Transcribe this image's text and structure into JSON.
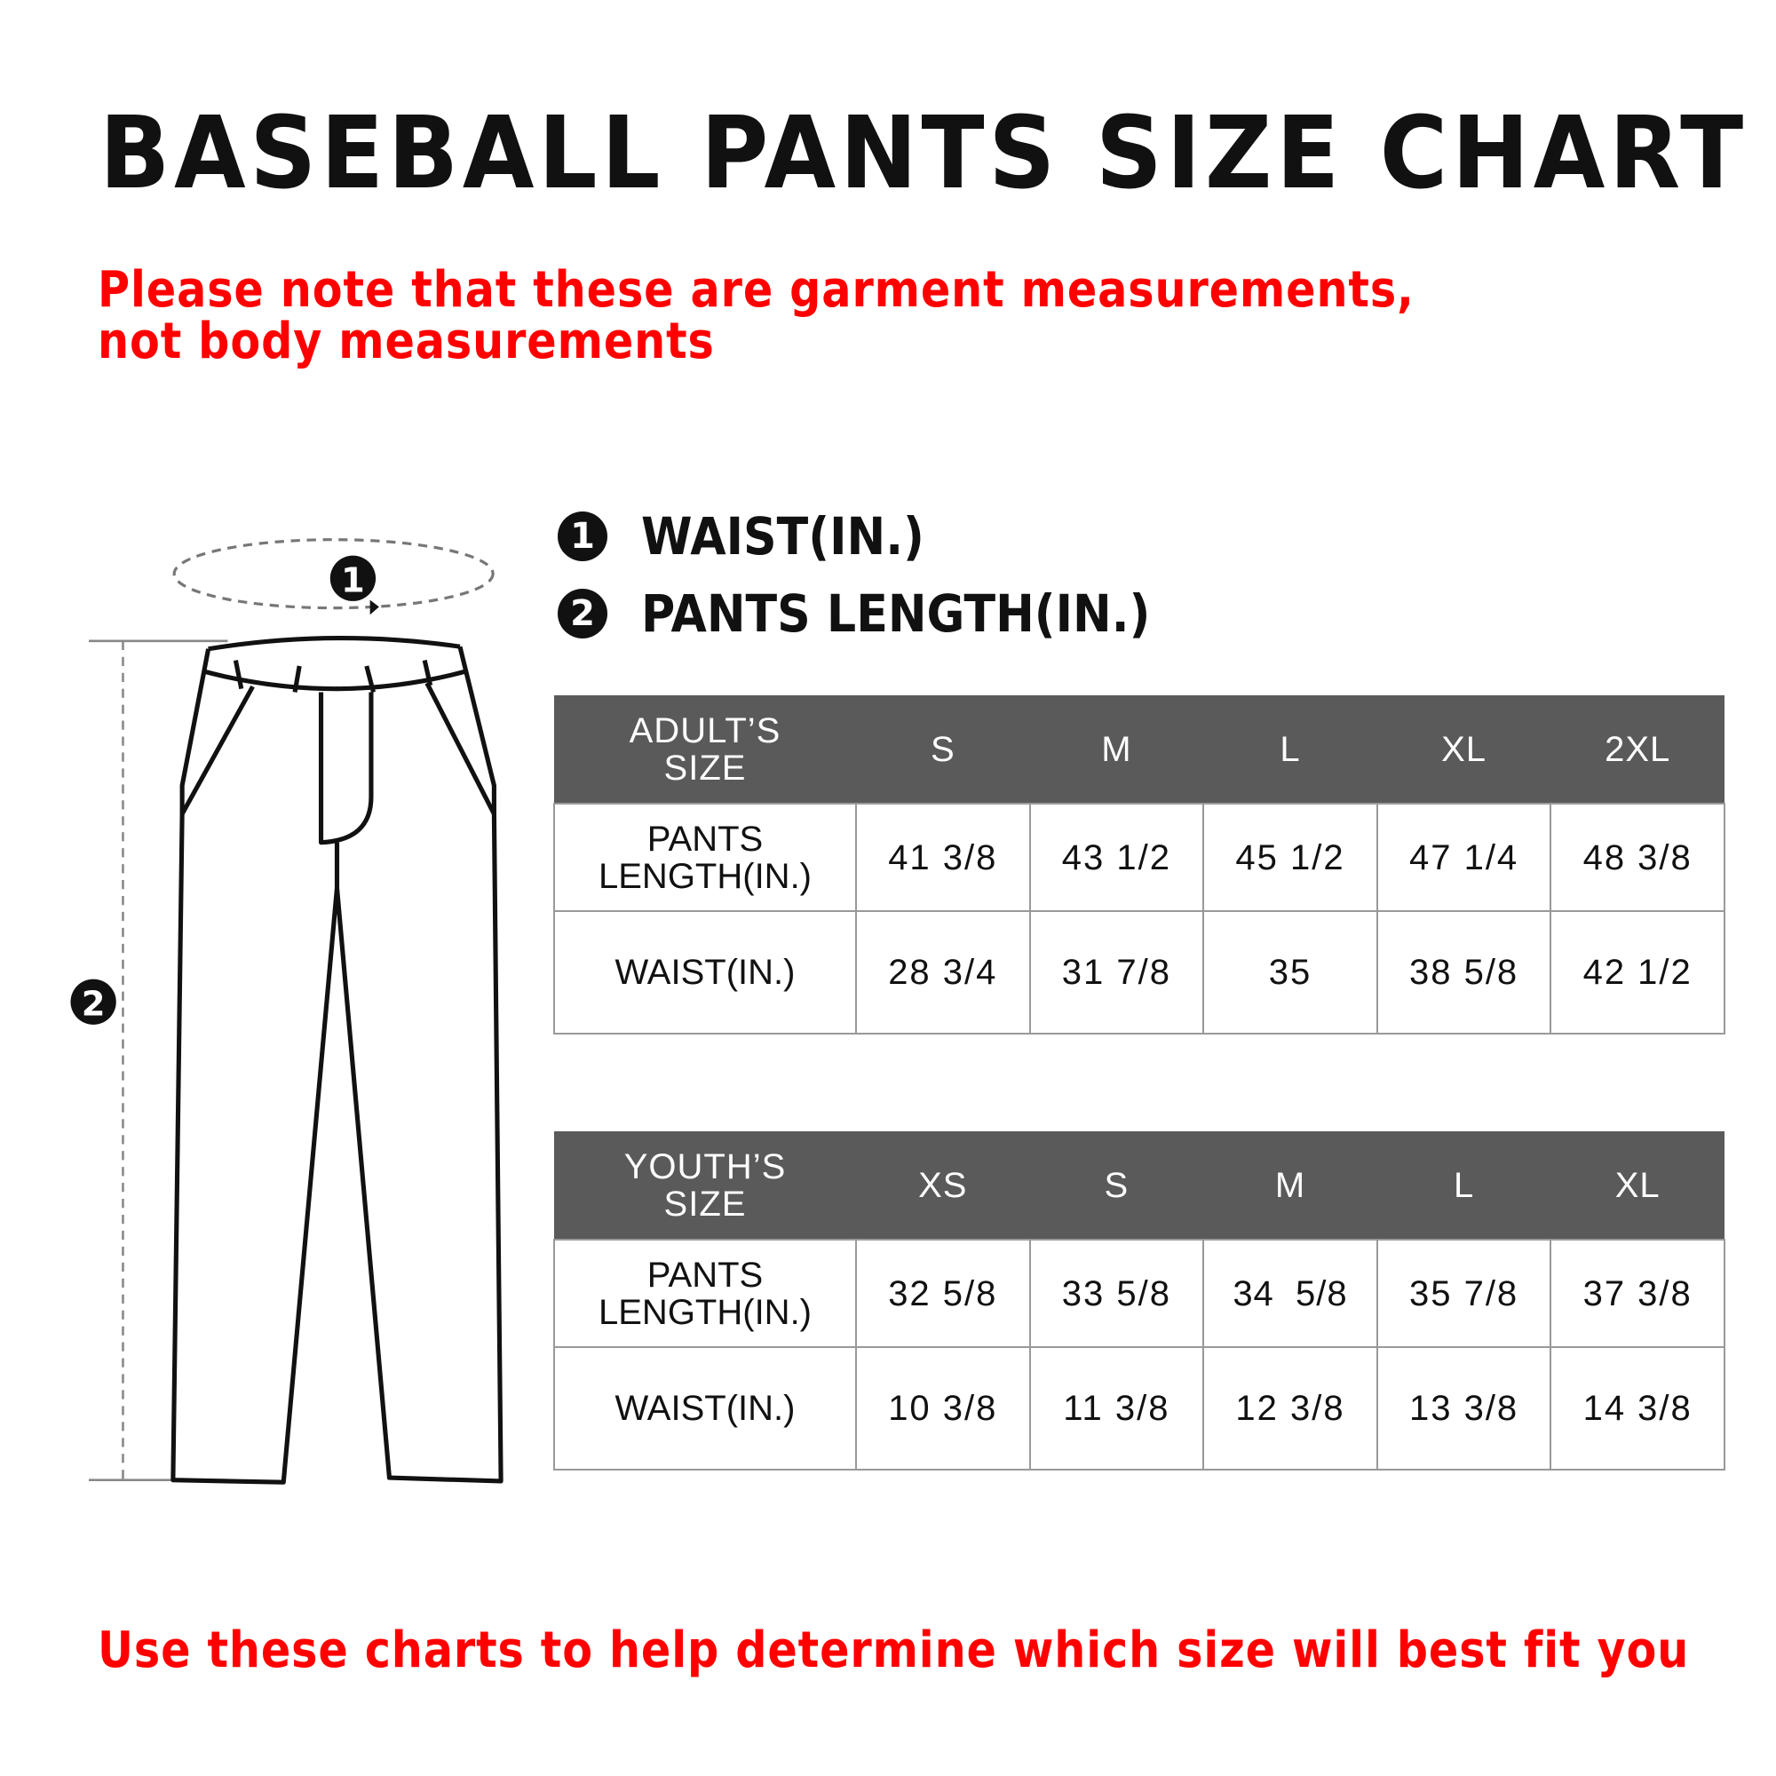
{
  "title": "BASEBALL PANTS SIZE CHART",
  "note": "Please note that these are garment measurements, not body measurements",
  "legend": [
    {
      "num": "1",
      "label": "WAIST(IN.)"
    },
    {
      "num": "2",
      "label": "PANTS LENGTH(IN.)"
    }
  ],
  "diagram": {
    "marker1": "1",
    "marker2": "2"
  },
  "adult": {
    "header": [
      "ADULT’S SIZE",
      "S",
      "M",
      "L",
      "XL",
      "2XL"
    ],
    "rows": [
      {
        "label": "PANTS LENGTH(IN.)",
        "values": [
          "41 3/8",
          "43 1/2",
          "45 1/2",
          "47 1/4",
          "48 3/8"
        ]
      },
      {
        "label": "WAIST(IN.)",
        "values": [
          "28 3/4",
          "31 7/8",
          "35",
          "38 5/8",
          "42 1/2"
        ]
      }
    ]
  },
  "youth": {
    "header": [
      "YOUTH’S SIZE",
      "XS",
      "S",
      "M",
      "L",
      "XL"
    ],
    "rows": [
      {
        "label": "PANTS LENGTH(IN.)",
        "values": [
          "32 5/8",
          "33 5/8",
          "34  5/8",
          "35 7/8",
          "37 3/8"
        ]
      },
      {
        "label": "WAIST(IN.)",
        "values": [
          "10 3/8",
          "11 3/8",
          "12 3/8",
          "13 3/8",
          "14 3/8"
        ]
      }
    ]
  },
  "footer": "Use these charts to help determine which size will best fit you",
  "colors": {
    "accent": "#ff0000",
    "header_bg": "#5a5a5a",
    "border": "#999999"
  }
}
